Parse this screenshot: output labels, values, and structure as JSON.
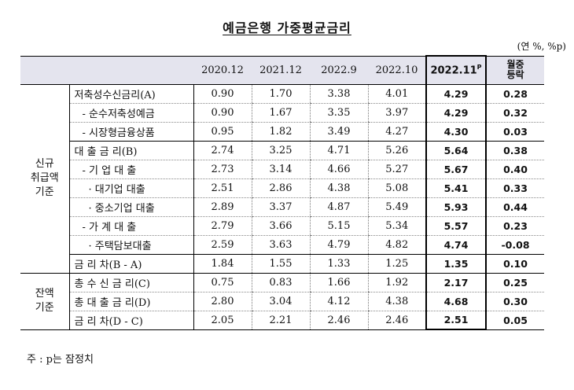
{
  "title": "예금은행 가중평균금리",
  "unit": "(연 %, %p)",
  "note": "주 : p는 잠정치",
  "headers": [
    "2020.12",
    "2021.12",
    "2022.9",
    "2022.10",
    "2022.11",
    "월중\n등락"
  ],
  "prelim_mark": "P",
  "groups": [
    {
      "label": "신규\n취급액\n기준",
      "rows": [
        {
          "item": "저축성수신금리(A)",
          "values": [
            "0.90",
            "1.70",
            "3.38",
            "4.01",
            "4.29",
            "0.28"
          ]
        },
        {
          "item": "- 순수저축성예금",
          "values": [
            "0.90",
            "1.67",
            "3.35",
            "3.97",
            "4.29",
            "0.32"
          ]
        },
        {
          "item": "- 시장형금융상품",
          "values": [
            "0.95",
            "1.82",
            "3.49",
            "4.27",
            "4.30",
            "0.03"
          ]
        },
        {
          "item": "대 출 금 리(B)",
          "values": [
            "2.74",
            "3.25",
            "4.71",
            "5.26",
            "5.64",
            "0.38"
          ]
        },
        {
          "item": "- 기 업 대 출",
          "values": [
            "2.73",
            "3.14",
            "4.66",
            "5.27",
            "5.67",
            "0.40"
          ]
        },
        {
          "item": "· 대기업 대출",
          "values": [
            "2.51",
            "2.86",
            "4.38",
            "5.08",
            "5.41",
            "0.33"
          ]
        },
        {
          "item": "· 중소기업 대출",
          "values": [
            "2.89",
            "3.37",
            "4.87",
            "5.49",
            "5.93",
            "0.44"
          ]
        },
        {
          "item": "- 가 계 대 출",
          "values": [
            "2.79",
            "3.66",
            "5.15",
            "5.34",
            "5.57",
            "0.23"
          ]
        },
        {
          "item": "· 주택담보대출",
          "values": [
            "2.59",
            "3.63",
            "4.79",
            "4.82",
            "4.74",
            "-0.08"
          ]
        },
        {
          "item": "금 리 차(B - A)",
          "values": [
            "1.84",
            "1.55",
            "1.33",
            "1.25",
            "1.35",
            "0.10"
          ]
        }
      ]
    },
    {
      "label": "잔액\n기준",
      "rows": [
        {
          "item": "총 수 신 금 리(C)",
          "values": [
            "0.75",
            "0.83",
            "1.66",
            "1.92",
            "2.17",
            "0.25"
          ]
        },
        {
          "item": "총 대 출 금 리(D)",
          "values": [
            "2.80",
            "3.04",
            "4.12",
            "4.38",
            "4.68",
            "0.30"
          ]
        },
        {
          "item": "금 리 차(D - C)",
          "values": [
            "2.05",
            "2.21",
            "2.46",
            "2.46",
            "2.51",
            "0.05"
          ]
        }
      ]
    }
  ]
}
